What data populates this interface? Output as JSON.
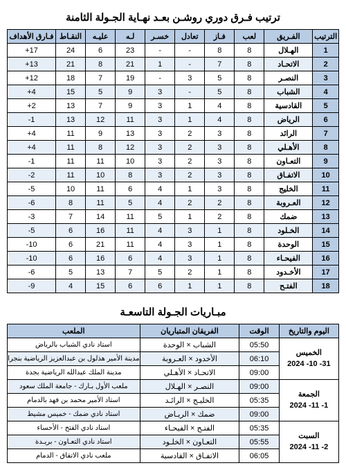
{
  "standings": {
    "title": "ترتيب فـرق دوري روشـن بعـد نهـاية الجـولة الثامنة",
    "columns": [
      "الترتيب",
      "الفـريق",
      "لعب",
      "فـاز",
      "تعادل",
      "خسـر",
      "لـه",
      "عليـه",
      "النقـاط",
      "فـارق الأهداف"
    ],
    "rows": [
      [
        "1",
        "الهـلال",
        "8",
        "8",
        "-",
        "-",
        "23",
        "6",
        "24",
        "17+"
      ],
      [
        "2",
        "الاتحـاد",
        "8",
        "7",
        "-",
        "1",
        "21",
        "8",
        "21",
        "13+"
      ],
      [
        "3",
        "النصـر",
        "8",
        "5",
        "3",
        "-",
        "19",
        "7",
        "18",
        "12+"
      ],
      [
        "4",
        "الشباب",
        "8",
        "5",
        "-",
        "3",
        "9",
        "5",
        "15",
        "4+"
      ],
      [
        "5",
        "القادسية",
        "8",
        "4",
        "1",
        "3",
        "9",
        "7",
        "13",
        "2+"
      ],
      [
        "6",
        "الرياض",
        "8",
        "4",
        "1",
        "3",
        "11",
        "12",
        "13",
        "1-"
      ],
      [
        "7",
        "الرائد",
        "8",
        "3",
        "2",
        "3",
        "13",
        "9",
        "11",
        "4+"
      ],
      [
        "8",
        "الأهـلي",
        "8",
        "3",
        "2",
        "3",
        "12",
        "8",
        "11",
        "4+"
      ],
      [
        "9",
        "التعـاون",
        "8",
        "3",
        "2",
        "3",
        "10",
        "11",
        "11",
        "1-"
      ],
      [
        "10",
        "الاتفـاق",
        "8",
        "3",
        "2",
        "3",
        "8",
        "10",
        "11",
        "2-"
      ],
      [
        "11",
        "الخليج",
        "8",
        "3",
        "1",
        "4",
        "6",
        "11",
        "10",
        "5-"
      ],
      [
        "12",
        "العـروبة",
        "8",
        "2",
        "2",
        "4",
        "5",
        "11",
        "8",
        "6-"
      ],
      [
        "13",
        "ضمك",
        "8",
        "2",
        "1",
        "5",
        "11",
        "14",
        "7",
        "3-"
      ],
      [
        "14",
        "الخـلود",
        "8",
        "1",
        "3",
        "4",
        "11",
        "16",
        "6",
        "5-"
      ],
      [
        "15",
        "الوحدة",
        "8",
        "1",
        "3",
        "4",
        "11",
        "21",
        "6",
        "10-"
      ],
      [
        "16",
        "الفيحـاء",
        "8",
        "1",
        "3",
        "4",
        "6",
        "16",
        "6",
        "10-"
      ],
      [
        "17",
        "الأخـدود",
        "8",
        "1",
        "2",
        "5",
        "7",
        "13",
        "5",
        "6-"
      ],
      [
        "18",
        "الفتـح",
        "8",
        "1",
        "1",
        "6",
        "6",
        "15",
        "4",
        "9-"
      ]
    ]
  },
  "fixtures": {
    "title": "مبـاريات الجـولة التاسعـة",
    "columns": [
      "اليوم والتاريخ",
      "الوقت",
      "الفريقان المتباريان",
      "الملعب"
    ],
    "groups": [
      {
        "date_lines": [
          "الخميس",
          "31- 10- 2024"
        ],
        "matches": [
          {
            "time": "05:50",
            "teams": "الشباب × الوحدة",
            "venue": "استاد نادي الشباب بالرياض"
          },
          {
            "time": "06:10",
            "teams": "الأخدود × العـروبة",
            "venue": "مدينة الأمير هذلول بن عبدالعزيز الرياضية بنجران"
          },
          {
            "time": "09:00",
            "teams": "الاتحـاد × الأهـلي",
            "venue": "مدينة الملك عبدالله الرياضية بجدة"
          }
        ]
      },
      {
        "date_lines": [
          "الجمعة",
          "1- 11- 2024"
        ],
        "matches": [
          {
            "time": "09:00",
            "teams": "النصـر × الهـلال",
            "venue": "ملعب الأول بـارك - جامعة الملك سعود"
          },
          {
            "time": "05:35",
            "teams": "الخليـج × الرائـد",
            "venue": "استاد الأمير محمد بن فهد بالدمام"
          },
          {
            "time": "09:00",
            "teams": "ضمك × الريـاض",
            "venue": "استاد نادي ضمك - خميس مشيط"
          }
        ]
      },
      {
        "date_lines": [
          "السبت",
          "2- 11- 2024"
        ],
        "matches": [
          {
            "time": "05:35",
            "teams": "الفتـح × الفيحـاء",
            "venue": "استاد نادي الفتح - الأحساء"
          },
          {
            "time": "05:55",
            "teams": "التعـاون × الخلـود",
            "venue": "استاد نادي التعـاون - بريـدة"
          },
          {
            "time": "06:05",
            "teams": "الاتفـاق × القادسية",
            "venue": "ملعب نادي الاتفاق - الدمام"
          }
        ]
      }
    ]
  },
  "colors": {
    "header_bg": "#b8cce4",
    "alt_bg": "#e6eef8",
    "plain_bg": "#ffffff",
    "border": "#000000"
  }
}
